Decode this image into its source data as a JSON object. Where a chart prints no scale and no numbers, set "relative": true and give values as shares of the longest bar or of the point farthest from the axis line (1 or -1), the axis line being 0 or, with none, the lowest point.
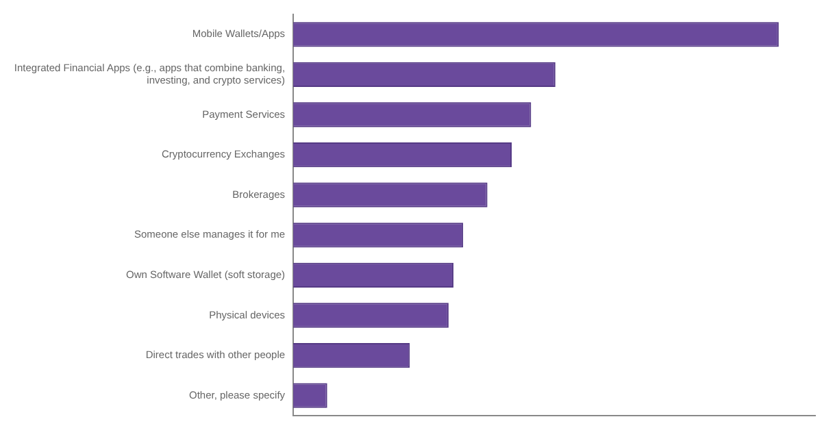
{
  "chart_data": {
    "type": "bar",
    "orientation": "horizontal",
    "relative": true,
    "color": "#6a4a9c",
    "categories": [
      "Mobile Wallets/Apps",
      "Integrated Financial Apps (e.g., apps that combine banking, investing, and crypto services)",
      "Payment Services",
      "Cryptocurrency Exchanges",
      "Brokerages",
      "Someone else manages it for me",
      "Own Software Wallet (soft storage)",
      "Physical devices",
      "Direct trades with other people",
      "Other, please specify"
    ],
    "values": [
      1,
      0.54,
      0.49,
      0.45,
      0.4,
      0.35,
      0.33,
      0.32,
      0.24,
      0.07
    ]
  }
}
